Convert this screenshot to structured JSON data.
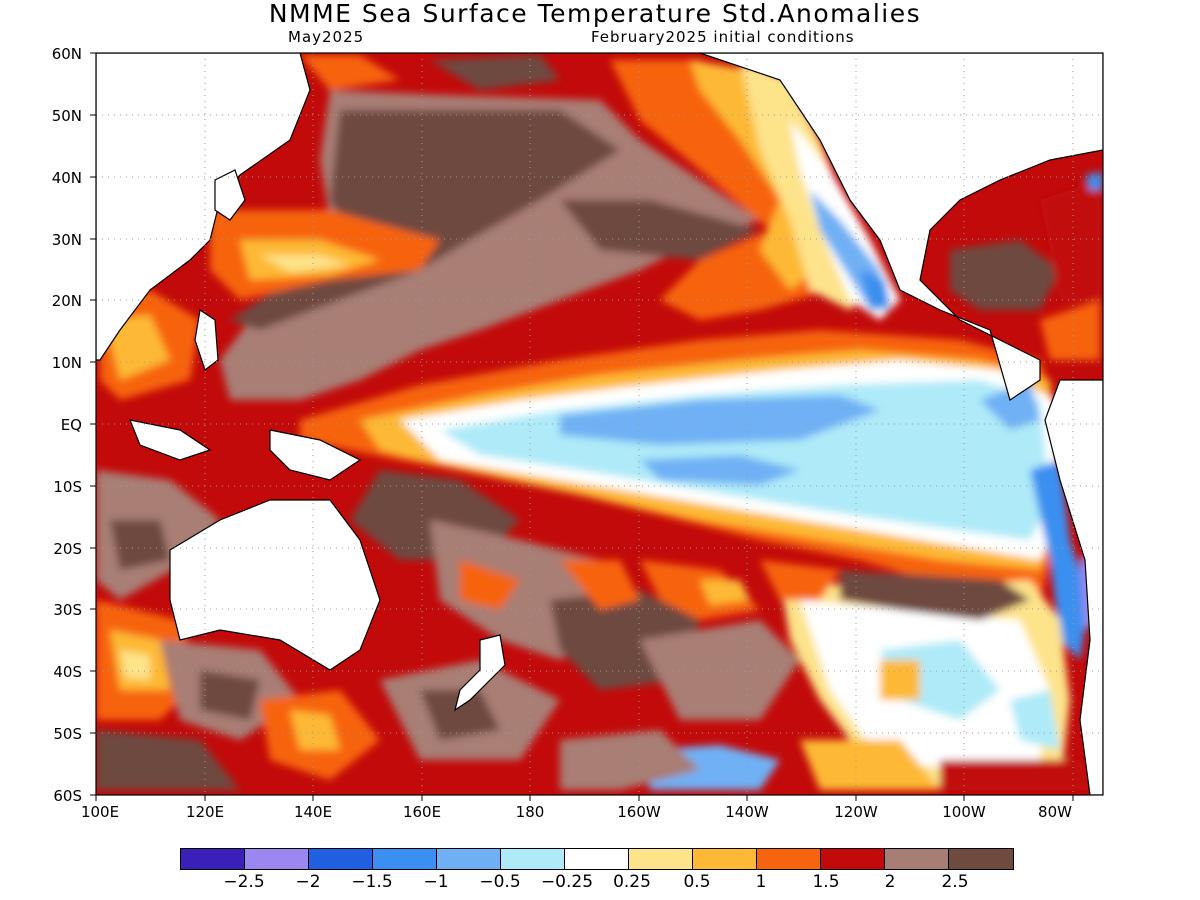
{
  "title": "NMME Sea Surface Temperature Std.Anomalies",
  "subtitle_left": "May2025",
  "subtitle_right": "February2025 initial conditions",
  "map": {
    "projection": "equirectangular",
    "lon_range": [
      "100E",
      "70W"
    ],
    "lat_range": [
      "60S",
      "60N"
    ],
    "gridlines": "dotted"
  },
  "lat_labels": [
    "60N",
    "50N",
    "40N",
    "30N",
    "20N",
    "10N",
    "EQ",
    "10S",
    "20S",
    "30S",
    "40S",
    "50S",
    "60S"
  ],
  "lon_labels": [
    "100E",
    "120E",
    "140E",
    "160E",
    "180",
    "160W",
    "140W",
    "120W",
    "100W",
    "80W"
  ],
  "colorbar": {
    "colors": [
      "#3a1fb8",
      "#9c87f0",
      "#1f5fe0",
      "#3b8ff0",
      "#6fb0f5",
      "#aeeaf8",
      "#ffffff",
      "#fde38a",
      "#fdb935",
      "#f7640f",
      "#c20a0a",
      "#a87e74",
      "#6e4a3f"
    ],
    "tick_labels": [
      "−2.5",
      "−2",
      "−1.5",
      "−1",
      "−0.5",
      "−0.25",
      "0.25",
      "0.5",
      "1",
      "1.5",
      "2",
      "2.5"
    ]
  }
}
